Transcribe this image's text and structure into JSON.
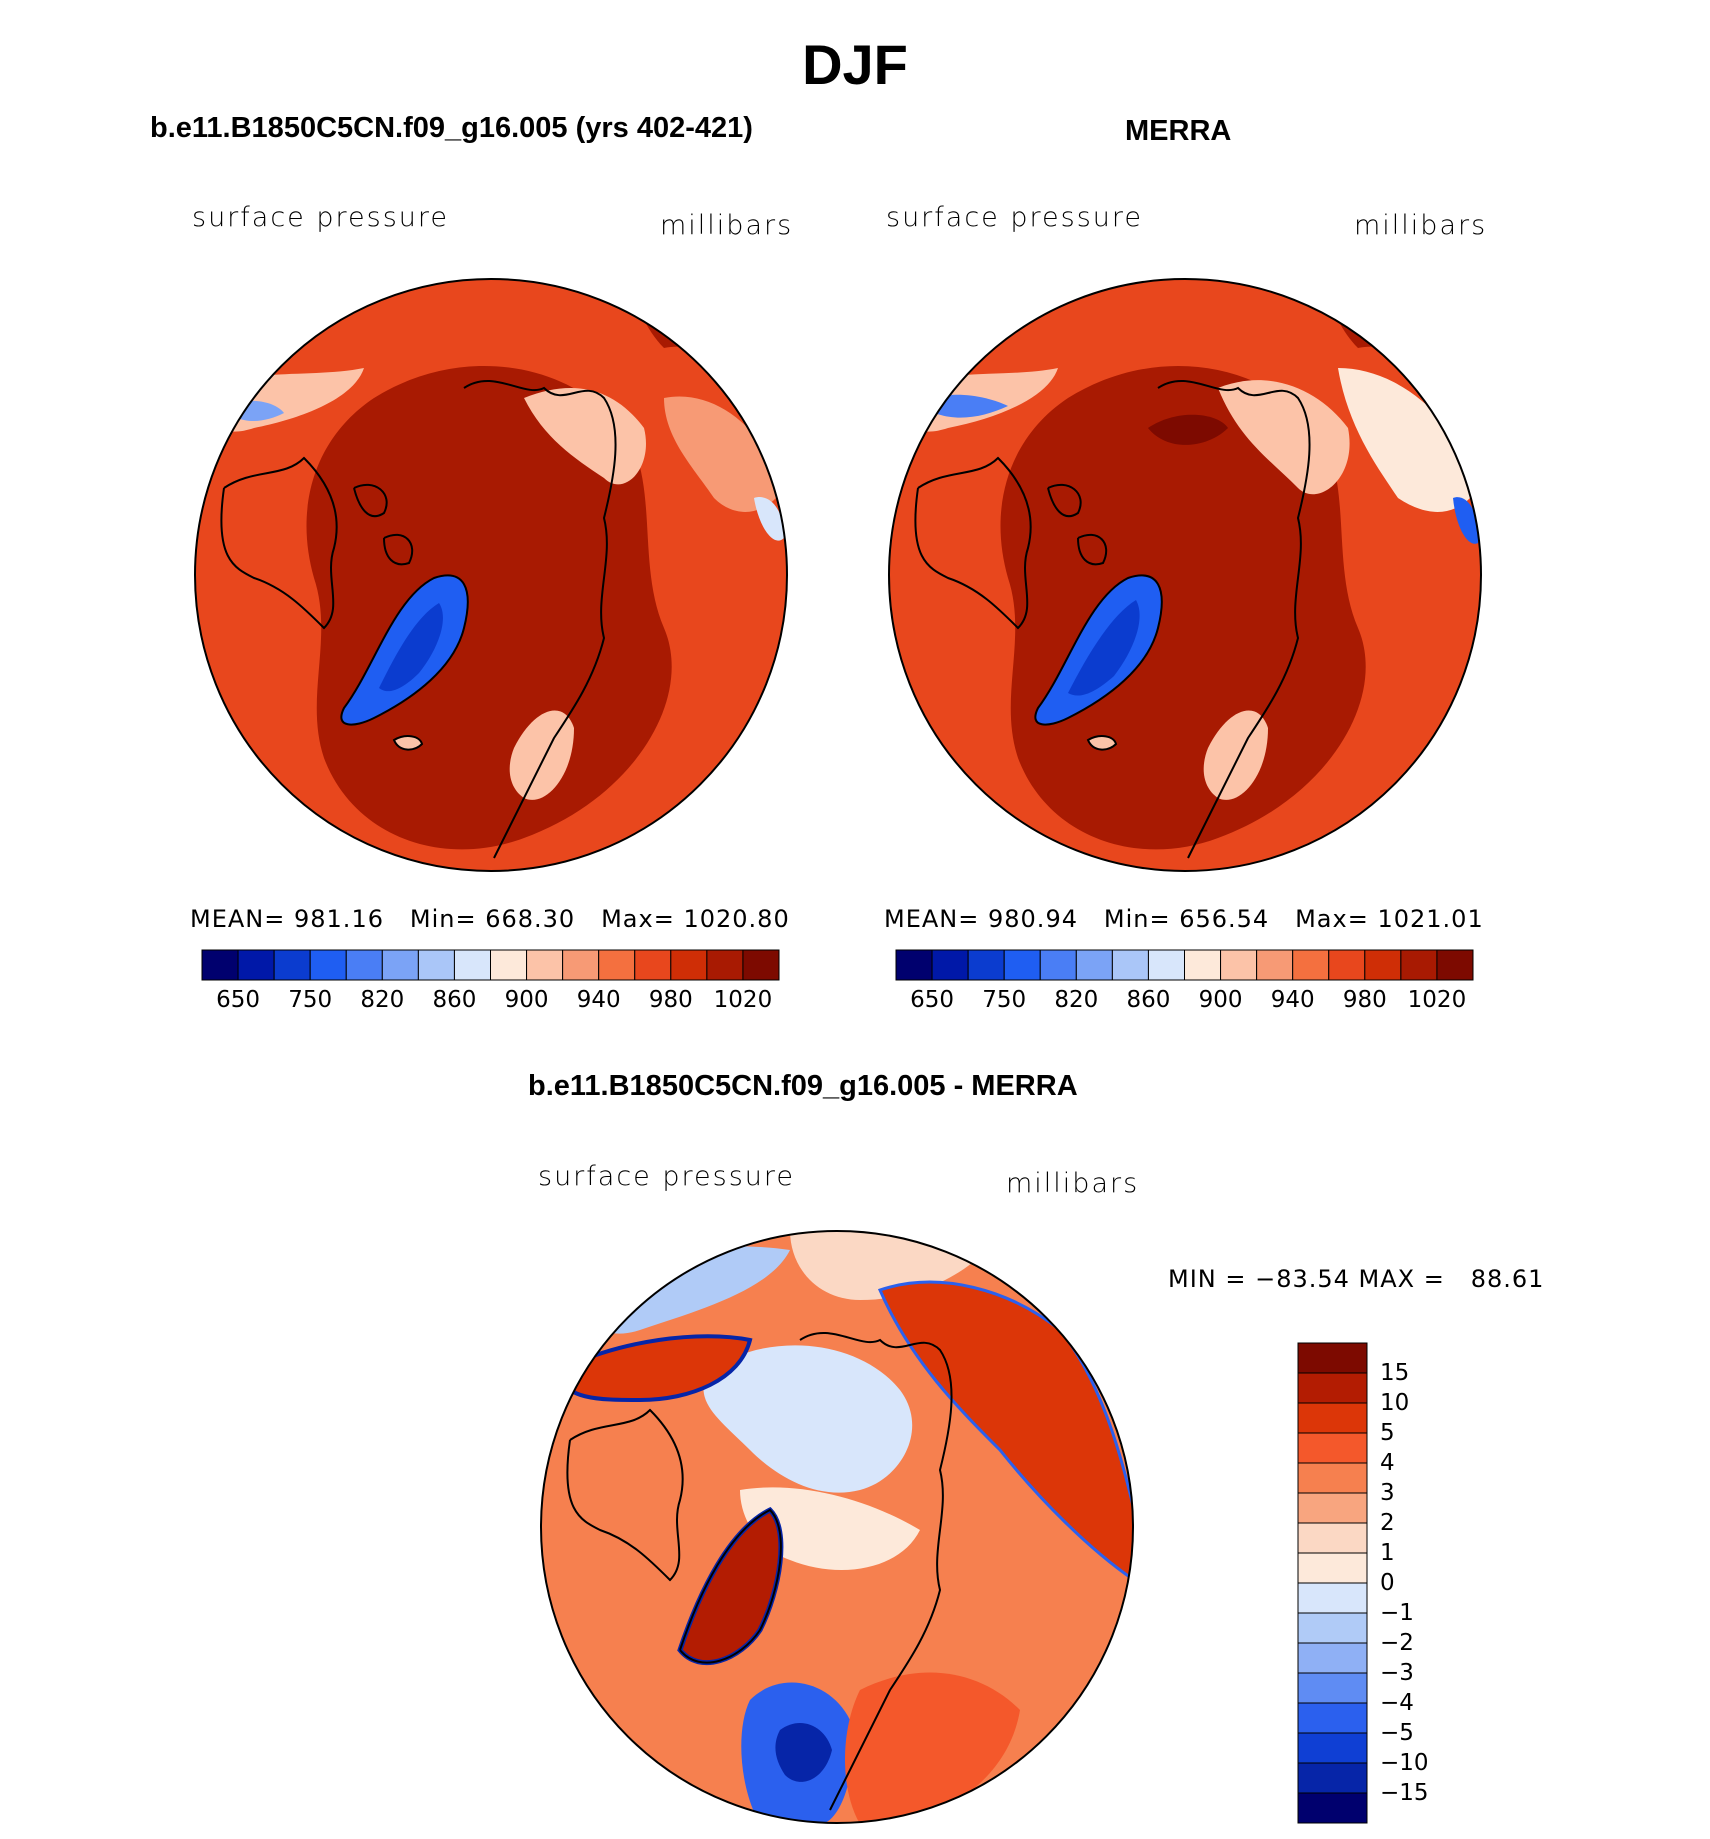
{
  "figure": {
    "title": "DJF"
  },
  "panels": [
    {
      "title": "b.e11.B1850C5CN.f09_g16.005 (yrs 402-421)",
      "variable": "surface pressure",
      "units": "millibars",
      "mean_label": "MEAN=",
      "mean": "981.16",
      "min_label": "Min=",
      "min": "668.30",
      "max_label": "Max=",
      "max": "1020.80"
    },
    {
      "title": "MERRA",
      "variable": "surface pressure",
      "units": "millibars",
      "mean_label": "MEAN=",
      "mean": "980.94",
      "min_label": "Min=",
      "min": "656.54",
      "max_label": "Max=",
      "max": "1021.01"
    }
  ],
  "difference": {
    "title": "b.e11.B1850C5CN.f09_g16.005 - MERRA",
    "variable": "surface pressure",
    "units": "millibars",
    "minmax_text": "MIN = −83.54 MAX =   88.61"
  },
  "colorbar_pressure": {
    "colors": [
      "#00006e",
      "#0018a8",
      "#0b3ccf",
      "#1f5ef2",
      "#4a7ef5",
      "#7ba3f6",
      "#aac6f8",
      "#d8e6fb",
      "#fde9da",
      "#fcc3a8",
      "#f79a75",
      "#f4703f",
      "#e8471d",
      "#cf2e06",
      "#a81a02",
      "#7d0a00"
    ],
    "tick_labels": [
      "650",
      "750",
      "820",
      "860",
      "900",
      "940",
      "980",
      "1020"
    ]
  },
  "colorbar_diff": {
    "colors": [
      "#7d0a00",
      "#b31c02",
      "#dc3608",
      "#f4582b",
      "#f6804f",
      "#f8a57f",
      "#fbd8c4",
      "#fde9da",
      "#d8e6fb",
      "#b0cbf7",
      "#8fb0f5",
      "#5f8cf3",
      "#2b60ee",
      "#0f3fd4",
      "#0625a8",
      "#00006e"
    ],
    "tick_labels": [
      "15",
      "10",
      "5",
      "4",
      "3",
      "2",
      "1",
      "0",
      "−1",
      "−2",
      "−3",
      "−4",
      "−5",
      "−10",
      "−15"
    ]
  },
  "map_colors": {
    "ocean_high": "#a81a02",
    "land_mid": "#e8471d",
    "land_low": "#f4703f",
    "highland": "#fcc3a8",
    "ice_sheet": "#1f5ef2",
    "ice_core": "#0b3ccf",
    "coast": "#000000",
    "diff_pos": "#f6804f",
    "diff_pos_strong": "#dc3608",
    "diff_neg": "#d8e6fb",
    "diff_neg_strong": "#2b60ee"
  }
}
